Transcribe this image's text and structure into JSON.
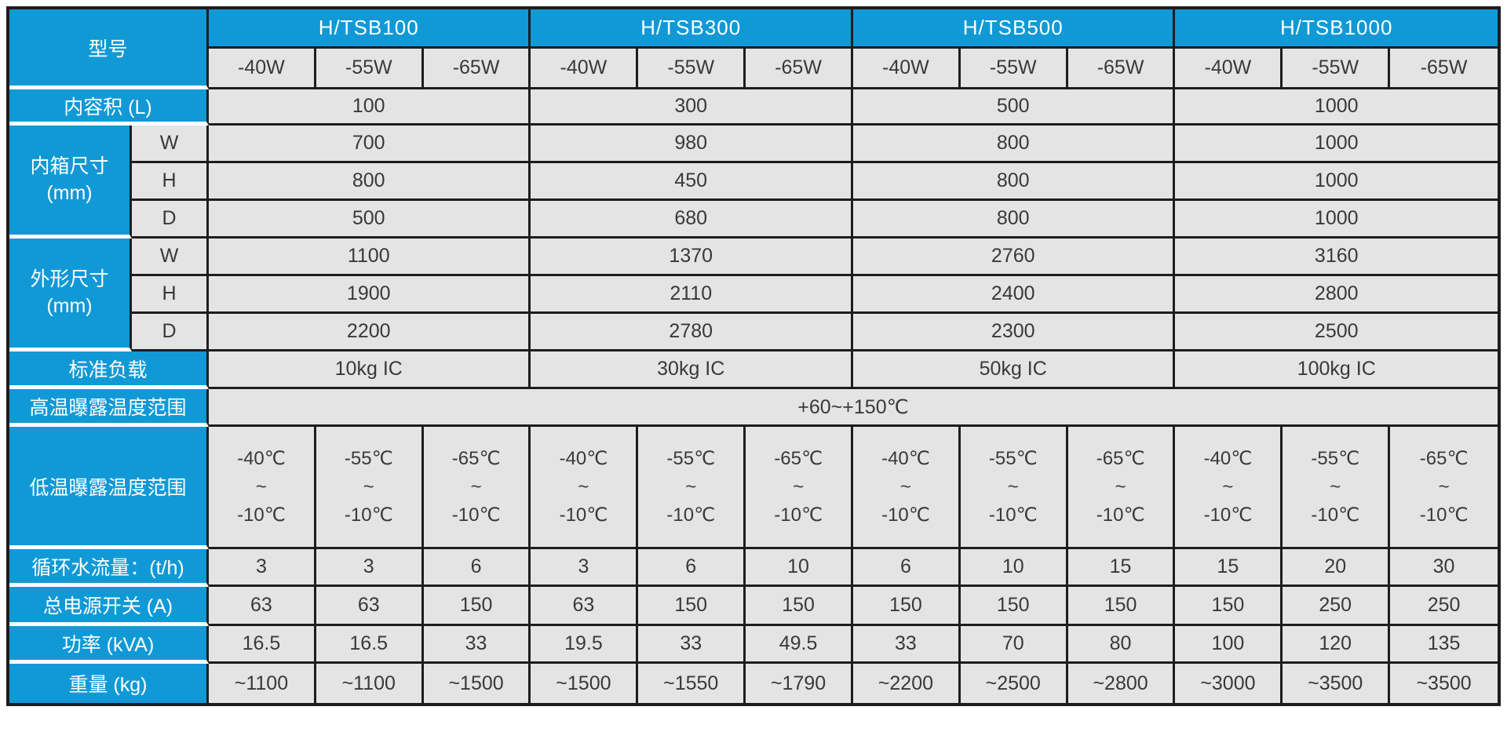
{
  "table": {
    "corner_label": "型号",
    "groups": [
      {
        "model": "H/TSB100",
        "variants": [
          "-40W",
          "-55W",
          "-65W"
        ]
      },
      {
        "model": "H/TSB300",
        "variants": [
          "-40W",
          "-55W",
          "-65W"
        ]
      },
      {
        "model": "H/TSB500",
        "variants": [
          "-40W",
          "-55W",
          "-65W"
        ]
      },
      {
        "model": "H/TSB1000",
        "variants": [
          "-40W",
          "-55W",
          "-65W"
        ]
      }
    ],
    "volume_row": {
      "label": "内容积 (L)",
      "values": [
        "100",
        "300",
        "500",
        "1000"
      ]
    },
    "dimension_sections": [
      {
        "label": "内箱尺寸\n(mm)",
        "rows": [
          {
            "sub": "W",
            "values": [
              "700",
              "980",
              "800",
              "1000"
            ]
          },
          {
            "sub": "H",
            "values": [
              "800",
              "450",
              "800",
              "1000"
            ]
          },
          {
            "sub": "D",
            "values": [
              "500",
              "680",
              "800",
              "1000"
            ]
          }
        ]
      },
      {
        "label": "外形尺寸\n(mm)",
        "rows": [
          {
            "sub": "W",
            "values": [
              "1100",
              "1370",
              "2760",
              "3160"
            ]
          },
          {
            "sub": "H",
            "values": [
              "1900",
              "2110",
              "2400",
              "2800"
            ]
          },
          {
            "sub": "D",
            "values": [
              "2200",
              "2780",
              "2300",
              "2500"
            ]
          }
        ]
      }
    ],
    "load_row": {
      "label": "标准负载",
      "values": [
        "10kg IC",
        "30kg IC",
        "50kg IC",
        "100kg IC"
      ]
    },
    "high_temp_row": {
      "label": "高温曝露温度范围",
      "value": "+60~+150℃"
    },
    "low_temp_row": {
      "label": "低温曝露温度范围",
      "values": [
        "-40℃\n~\n-10℃",
        "-55℃\n~\n-10℃",
        "-65℃\n~\n-10℃",
        "-40℃\n~\n-10℃",
        "-55℃\n~\n-10℃",
        "-65℃\n~\n-10℃",
        "-40℃\n~\n-10℃",
        "-55℃\n~\n-10℃",
        "-65℃\n~\n-10℃",
        "-40℃\n~\n-10℃",
        "-55℃\n~\n-10℃",
        "-65℃\n~\n-10℃"
      ]
    },
    "spec_rows": [
      {
        "label": "循环水流量：(t/h)",
        "values": [
          "3",
          "3",
          "6",
          "3",
          "6",
          "10",
          "6",
          "10",
          "15",
          "15",
          "20",
          "30"
        ]
      },
      {
        "label": "总电源开关 (A)",
        "values": [
          "63",
          "63",
          "150",
          "63",
          "150",
          "150",
          "150",
          "150",
          "150",
          "150",
          "250",
          "250"
        ]
      },
      {
        "label": "功率 (kVA)",
        "values": [
          "16.5",
          "16.5",
          "33",
          "19.5",
          "33",
          "49.5",
          "33",
          "70",
          "80",
          "100",
          "120",
          "135"
        ]
      },
      {
        "label": "重量 (kg)",
        "values": [
          "~1100",
          "~1100",
          "~1500",
          "~1500",
          "~1550",
          "~1790",
          "~2200",
          "~2500",
          "~2800",
          "~3000",
          "~3500",
          "~3500"
        ]
      }
    ],
    "colors": {
      "header_blue": "#1199d6",
      "cell_gray": "#e4e4e5",
      "border_dark": "#1d1d1f",
      "text_dark": "#39393b",
      "separator_white": "#ffffff"
    }
  }
}
